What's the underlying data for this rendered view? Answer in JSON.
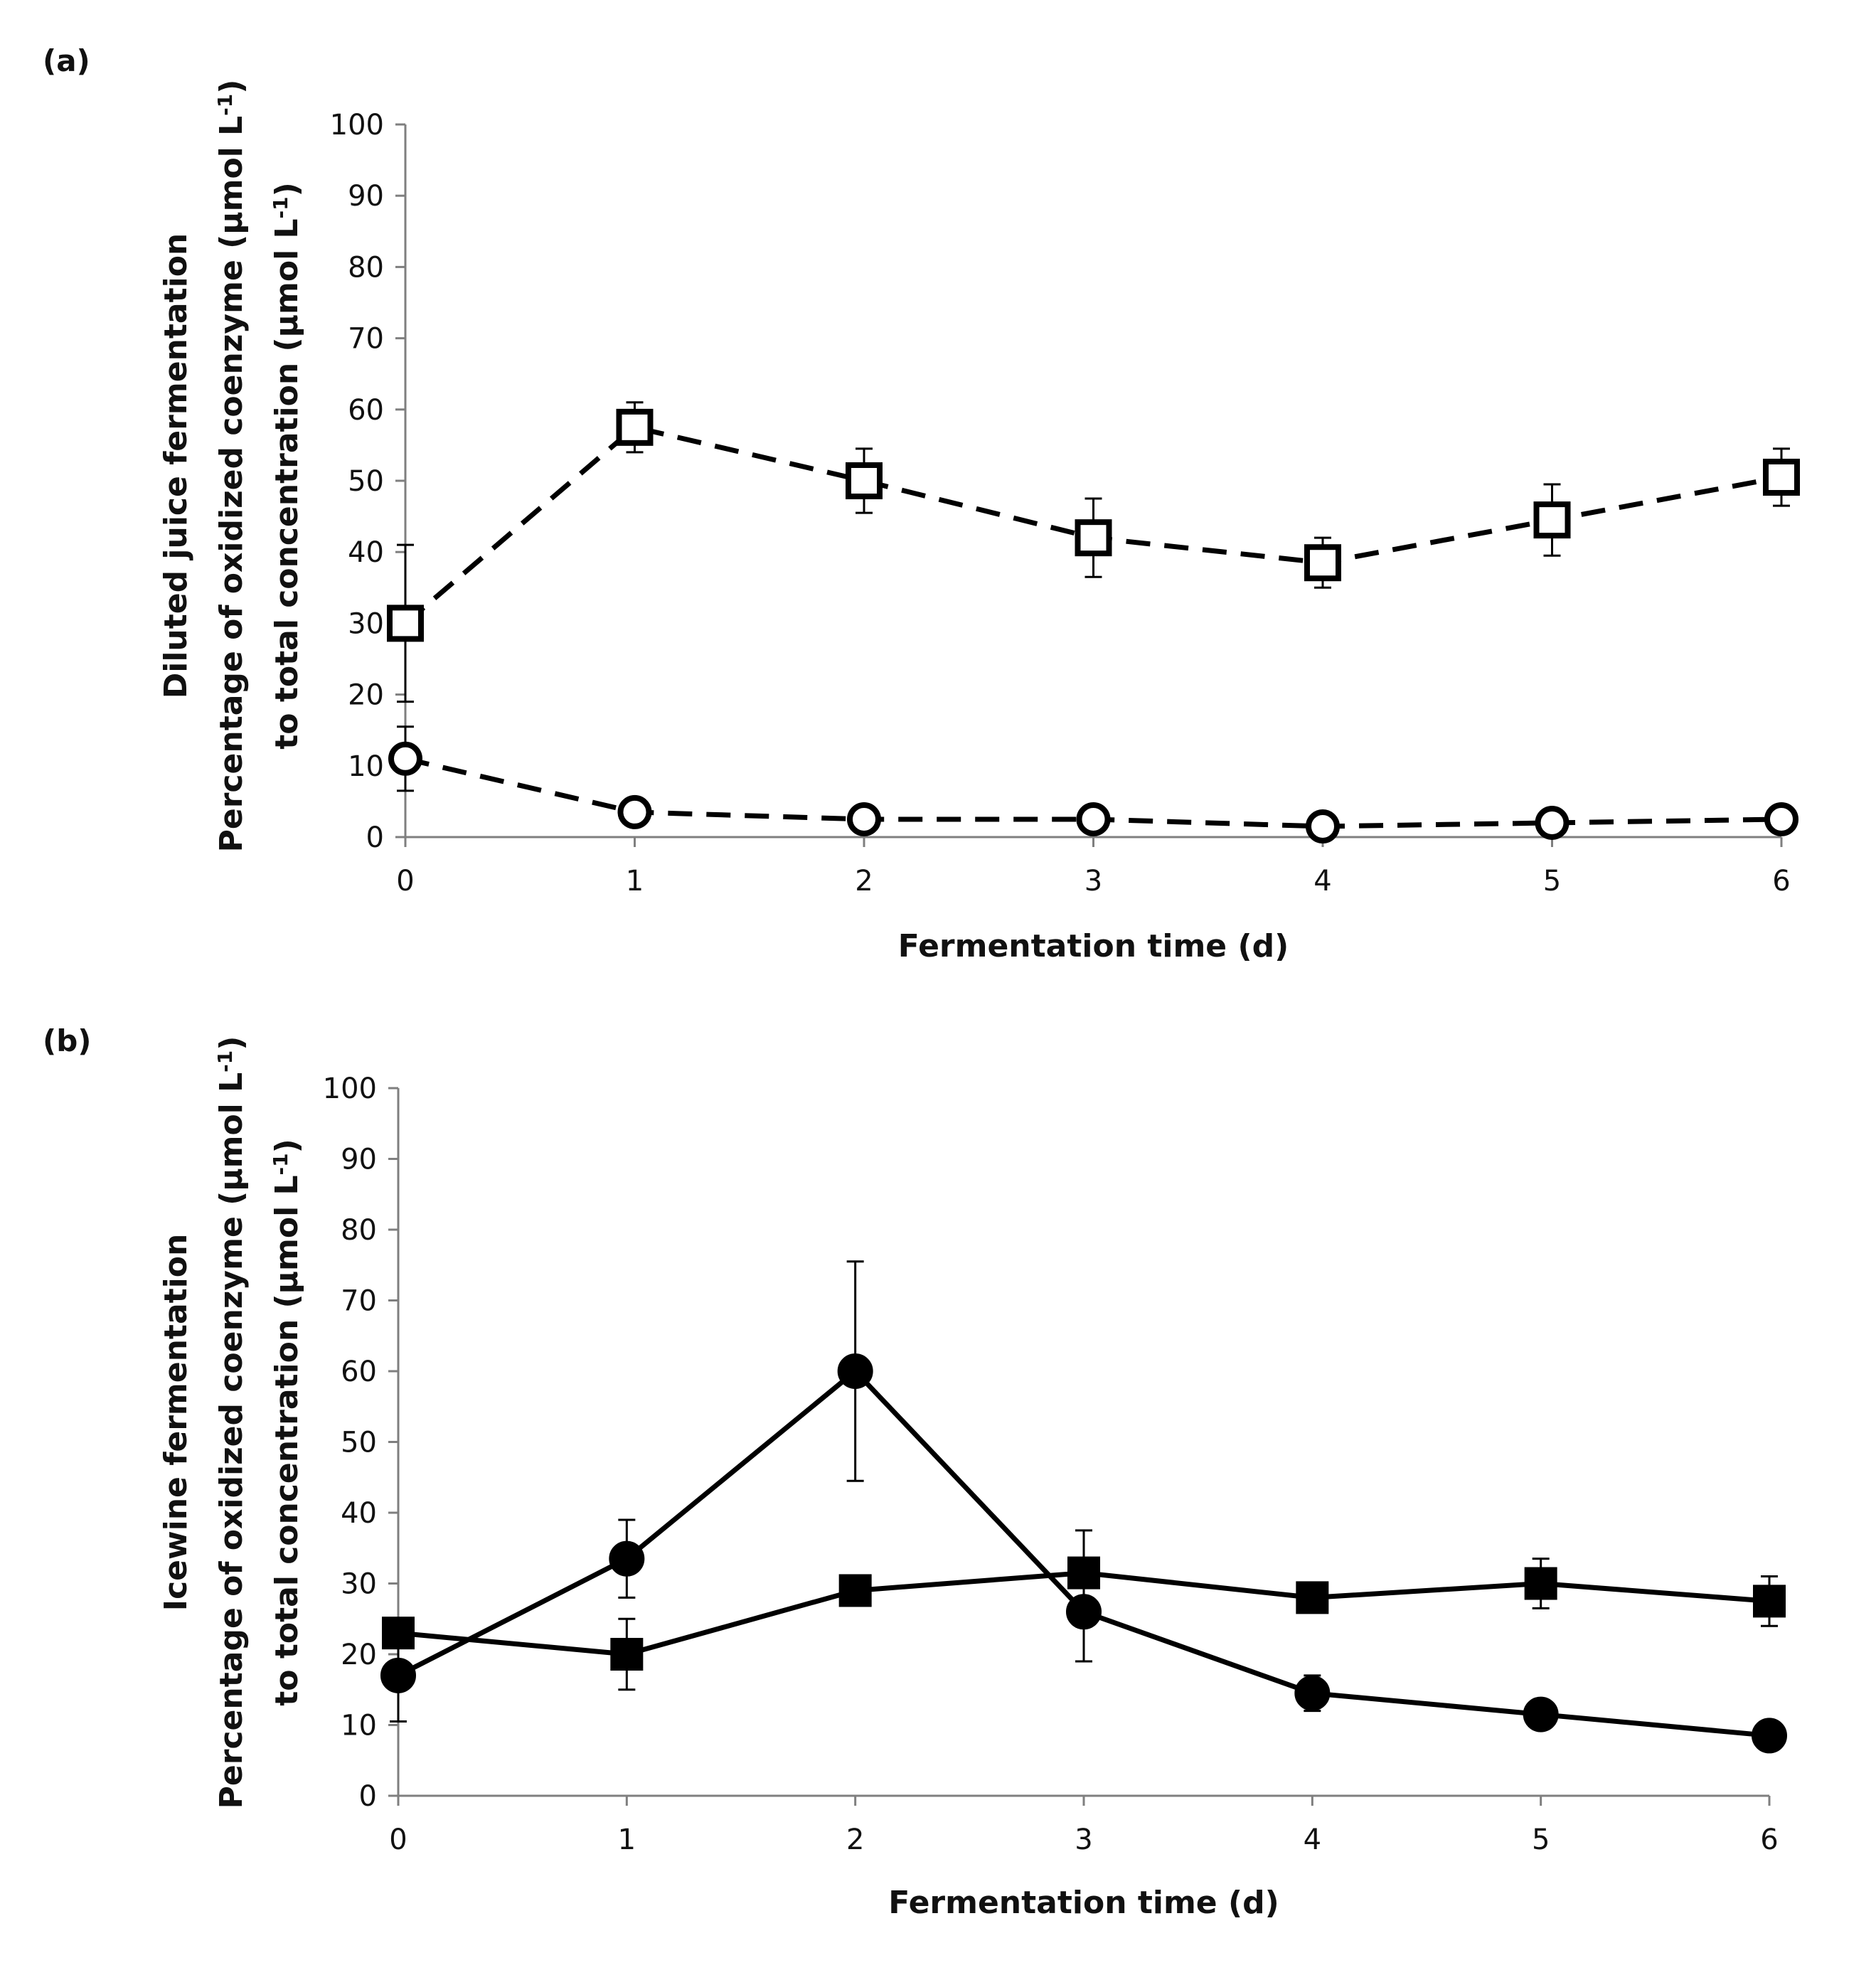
{
  "colors": {
    "ink": "#000000",
    "axis": "#7f7f7f",
    "background": "#ffffff"
  },
  "chart_data": [
    {
      "panel_label": "(a)",
      "type": "line",
      "title": "",
      "xlabel": "Fermentation time (d)",
      "ylabel_lines": [
        "Diluted juice fermentation",
        "Percentage of oxidized coenzyme (μmol L-1)",
        "to total concentration (μmol L-1)"
      ],
      "x": [
        0,
        1,
        2,
        3,
        4,
        5,
        6
      ],
      "x_ticks": [
        "0",
        "1",
        "2",
        "3",
        "4",
        "5",
        "6"
      ],
      "y_ticks": [
        "0",
        "10",
        "20",
        "30",
        "40",
        "50",
        "60",
        "70",
        "80",
        "90",
        "100"
      ],
      "xlim": [
        0,
        6
      ],
      "ylim": [
        0,
        100
      ],
      "grid": false,
      "series": [
        {
          "name": "open-square-dashed",
          "marker": "open-square",
          "line": "dashed",
          "values": [
            30,
            57.5,
            50,
            42,
            38.5,
            44.5,
            50.5
          ],
          "errors": [
            11,
            3.5,
            4.5,
            5.5,
            3.5,
            5,
            4
          ]
        },
        {
          "name": "open-circle-dashed",
          "marker": "open-circle",
          "line": "dashed",
          "values": [
            11,
            3.5,
            2.5,
            2.5,
            1.5,
            2,
            2.5
          ],
          "errors": [
            4.5,
            1.5,
            1,
            0.5,
            0.5,
            0.5,
            0.5
          ]
        }
      ]
    },
    {
      "panel_label": "(b)",
      "type": "line",
      "title": "",
      "xlabel": "Fermentation time (d)",
      "ylabel_lines": [
        "Icewine fermentation",
        "Percentage of oxidized coenzyme (μmol L-1)",
        "to total concentration (μmol L-1)"
      ],
      "x": [
        0,
        1,
        2,
        3,
        4,
        5,
        6
      ],
      "x_ticks": [
        "0",
        "1",
        "2",
        "3",
        "4",
        "5",
        "6"
      ],
      "y_ticks": [
        "0",
        "10",
        "20",
        "30",
        "40",
        "50",
        "60",
        "70",
        "80",
        "90",
        "100"
      ],
      "xlim": [
        0,
        6
      ],
      "ylim": [
        0,
        100
      ],
      "grid": false,
      "series": [
        {
          "name": "filled-circle-solid",
          "marker": "filled-circle",
          "line": "solid",
          "values": [
            17,
            33.5,
            60,
            26,
            14.5,
            11.5,
            8.5
          ],
          "errors": [
            6.5,
            5.5,
            15.5,
            7,
            2.5,
            0.5,
            0.5
          ]
        },
        {
          "name": "filled-square-solid",
          "marker": "filled-square",
          "line": "solid",
          "values": [
            23,
            20,
            29,
            31.5,
            28,
            30,
            27.5
          ],
          "errors": [
            1,
            5,
            1,
            6,
            1,
            3.5,
            3.5
          ]
        }
      ]
    }
  ]
}
